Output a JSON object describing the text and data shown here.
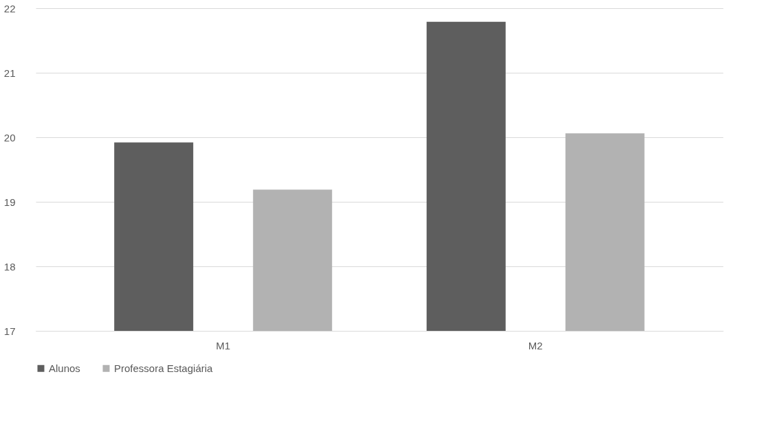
{
  "chart_data": {
    "type": "bar",
    "categories": [
      "M1",
      "M2"
    ],
    "series": [
      {
        "name": "Alunos",
        "color": "#5e5e5e",
        "values": [
          19.92,
          21.79
        ]
      },
      {
        "name": "Professora Estagiária",
        "color": "#b2b2b2",
        "values": [
          19.19,
          20.06
        ]
      }
    ],
    "ylim": [
      17,
      22
    ],
    "yticks": [
      17,
      18,
      19,
      20,
      21,
      22
    ],
    "grid": "y",
    "legend": "bottom"
  }
}
